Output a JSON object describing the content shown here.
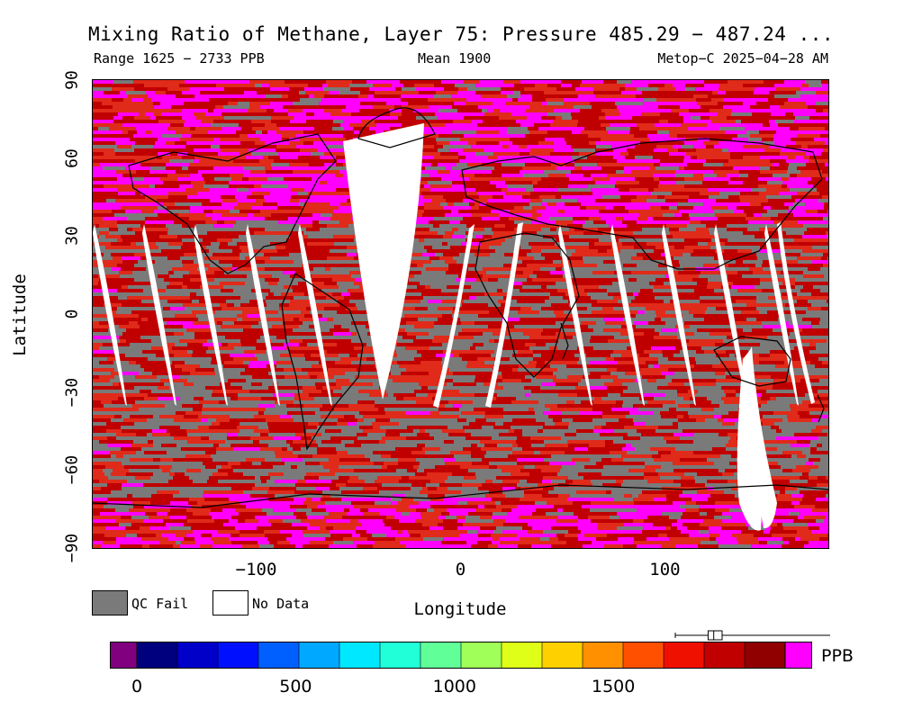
{
  "title": "Mixing Ratio of Methane, Layer 75: Pressure 485.29 − 487.24 ...",
  "subtitle": {
    "range": "Range 1625 − 2733 PPB",
    "mean": "Mean 1900",
    "source": "Metop−C 2025−04−28 AM"
  },
  "axes": {
    "ylabel": "Latitude",
    "xlabel": "Longitude",
    "lat_ticks": [
      {
        "label": "90",
        "value": 90
      },
      {
        "label": "60",
        "value": 60
      },
      {
        "label": "30",
        "value": 30
      },
      {
        "label": "0",
        "value": 0
      },
      {
        "label": "−30",
        "value": -30
      },
      {
        "label": "−60",
        "value": -60
      },
      {
        "label": "−90",
        "value": -90
      }
    ],
    "lon_ticks": [
      {
        "label": "−100",
        "value": -100
      },
      {
        "label": "0",
        "value": 0
      },
      {
        "label": "100",
        "value": 100
      }
    ],
    "lon_range": [
      -180,
      180
    ],
    "lat_range": [
      -90,
      90
    ]
  },
  "legend": {
    "qc_fail": "QC Fail",
    "no_data": "No Data",
    "qc_color": "#7a7a7a",
    "nodata_color": "#ffffff"
  },
  "colorbar": {
    "unit": "PPB",
    "ticks": [
      {
        "label": "0",
        "value": 0
      },
      {
        "label": "500",
        "value": 500
      },
      {
        "label": "1000",
        "value": 1000
      },
      {
        "label": "1500",
        "value": 1500
      }
    ],
    "min": -120,
    "max": 2200,
    "underflow_color": "#800080",
    "overflow_color": "#ff00ff",
    "colors": [
      "#00007f",
      "#0000c8",
      "#0010ff",
      "#0060ff",
      "#00a8ff",
      "#00e8ff",
      "#20ffd8",
      "#60ff98",
      "#a0ff58",
      "#e0ff18",
      "#ffd000",
      "#ff9000",
      "#ff5000",
      "#f01000",
      "#c00000",
      "#900000"
    ]
  },
  "boxplot": {
    "min": 1625,
    "q1": 1860,
    "median": 1900,
    "q3": 1960,
    "max": 2733
  },
  "colors": {
    "qc_fail": "#7a7a7a",
    "methane_high": "#ff00ff",
    "methane_mid": "#c00000",
    "methane_low": "#e02a1a"
  }
}
